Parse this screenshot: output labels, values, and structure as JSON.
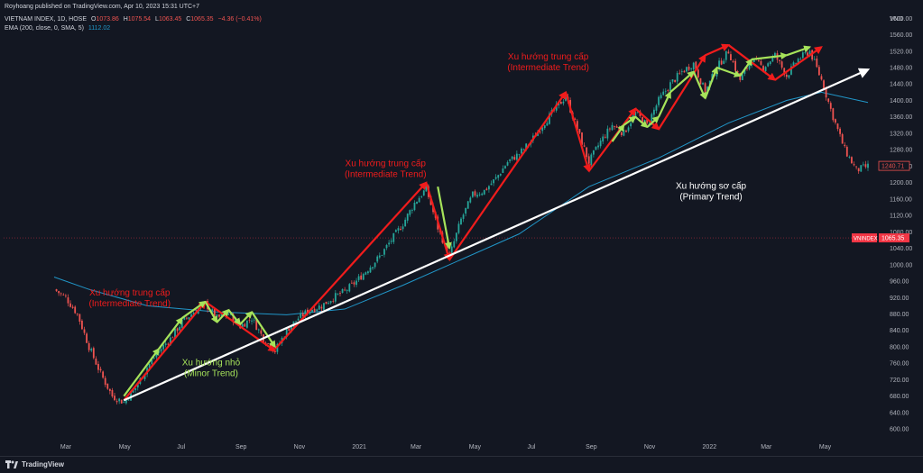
{
  "header": {
    "publisher": "Royhoang published on TradingView.com, Apr 10, 2023 15:31 UTC+7",
    "symbol": "VIETNAM INDEX, 1D, HOSE",
    "o_label": "O",
    "o_value": "1073.86",
    "h_label": "H",
    "h_value": "1075.54",
    "l_label": "L",
    "l_value": "1063.45",
    "c_label": "C",
    "c_value": "1065.35",
    "change": "−4.36 (−0.41%)",
    "ema_label": "EMA (200, close, 0, SMA, 5)",
    "ema_value": "1112.02"
  },
  "footer": {
    "brand": "TradingView",
    "logo_icon": "tradingview-logo-icon"
  },
  "colors": {
    "background": "#131722",
    "up": "#26a69a",
    "down": "#ef5350",
    "ema": "#2196c8",
    "trend_red": "#f01c1c",
    "trend_green": "#a6e35a",
    "primary": "#ffffff"
  },
  "chart_data": {
    "type": "candlestick",
    "currency": "VND",
    "y_ticks": [
      600,
      640,
      680,
      720,
      760,
      800,
      840,
      880,
      920,
      960,
      1000,
      1040,
      1080,
      1120,
      1160,
      1200,
      1240,
      1280,
      1320,
      1360,
      1400,
      1440,
      1480,
      1520,
      1560,
      1600
    ],
    "ylim": [
      574,
      1627
    ],
    "x_ticks": [
      "Mar",
      "May",
      "Jul",
      "Sep",
      "Nov",
      "2021",
      "Mar",
      "May",
      "Jul",
      "Sep",
      "Nov",
      "2022",
      "Mar",
      "May"
    ],
    "price_markers": [
      {
        "label": "VNINDEX",
        "value": "1065.35",
        "price": 1065.35,
        "color": "#f23645"
      },
      {
        "label": "",
        "value": "1240.71",
        "price": 1240.71,
        "color": "#ef5350"
      }
    ],
    "close_path": [
      {
        "t": 0,
        "p": 940
      },
      {
        "t": 1,
        "p": 920
      },
      {
        "t": 2,
        "p": 880
      },
      {
        "t": 3,
        "p": 800
      },
      {
        "t": 4,
        "p": 735
      },
      {
        "t": 5,
        "p": 680
      },
      {
        "t": 6,
        "p": 665
      },
      {
        "t": 7,
        "p": 700
      },
      {
        "t": 8,
        "p": 750
      },
      {
        "t": 9,
        "p": 790
      },
      {
        "t": 10,
        "p": 820
      },
      {
        "t": 11,
        "p": 860
      },
      {
        "t": 12,
        "p": 885
      },
      {
        "t": 13,
        "p": 905
      },
      {
        "t": 14,
        "p": 870
      },
      {
        "t": 15,
        "p": 880
      },
      {
        "t": 16,
        "p": 850
      },
      {
        "t": 17,
        "p": 870
      },
      {
        "t": 18,
        "p": 820
      },
      {
        "t": 19,
        "p": 790
      },
      {
        "t": 20,
        "p": 840
      },
      {
        "t": 21,
        "p": 870
      },
      {
        "t": 22,
        "p": 890
      },
      {
        "t": 23,
        "p": 900
      },
      {
        "t": 24,
        "p": 920
      },
      {
        "t": 25,
        "p": 935
      },
      {
        "t": 26,
        "p": 960
      },
      {
        "t": 27,
        "p": 990
      },
      {
        "t": 28,
        "p": 1020
      },
      {
        "t": 29,
        "p": 1060
      },
      {
        "t": 30,
        "p": 1100
      },
      {
        "t": 31,
        "p": 1150
      },
      {
        "t": 32,
        "p": 1185
      },
      {
        "t": 33,
        "p": 1090
      },
      {
        "t": 34,
        "p": 1020
      },
      {
        "t": 35,
        "p": 1110
      },
      {
        "t": 36,
        "p": 1170
      },
      {
        "t": 37,
        "p": 1180
      },
      {
        "t": 38,
        "p": 1210
      },
      {
        "t": 39,
        "p": 1250
      },
      {
        "t": 40,
        "p": 1270
      },
      {
        "t": 41,
        "p": 1300
      },
      {
        "t": 42,
        "p": 1340
      },
      {
        "t": 43,
        "p": 1375
      },
      {
        "t": 44,
        "p": 1410
      },
      {
        "t": 45,
        "p": 1330
      },
      {
        "t": 46,
        "p": 1250
      },
      {
        "t": 47,
        "p": 1300
      },
      {
        "t": 48,
        "p": 1340
      },
      {
        "t": 49,
        "p": 1320
      },
      {
        "t": 50,
        "p": 1370
      },
      {
        "t": 51,
        "p": 1340
      },
      {
        "t": 52,
        "p": 1400
      },
      {
        "t": 53,
        "p": 1440
      },
      {
        "t": 54,
        "p": 1470
      },
      {
        "t": 55,
        "p": 1490
      },
      {
        "t": 56,
        "p": 1420
      },
      {
        "t": 57,
        "p": 1480
      },
      {
        "t": 58,
        "p": 1520
      },
      {
        "t": 59,
        "p": 1450
      },
      {
        "t": 60,
        "p": 1500
      },
      {
        "t": 61,
        "p": 1480
      },
      {
        "t": 62,
        "p": 1510
      },
      {
        "t": 63,
        "p": 1460
      },
      {
        "t": 64,
        "p": 1500
      },
      {
        "t": 65,
        "p": 1520
      },
      {
        "t": 66,
        "p": 1450
      },
      {
        "t": 67,
        "p": 1360
      },
      {
        "t": 68,
        "p": 1280
      },
      {
        "t": 69,
        "p": 1230
      },
      {
        "t": 70,
        "p": 1240
      }
    ],
    "ema": [
      {
        "t": 0,
        "p": 970
      },
      {
        "t": 3,
        "p": 940
      },
      {
        "t": 8,
        "p": 900
      },
      {
        "t": 14,
        "p": 885
      },
      {
        "t": 20,
        "p": 878
      },
      {
        "t": 25,
        "p": 892
      },
      {
        "t": 30,
        "p": 950
      },
      {
        "t": 34,
        "p": 1000
      },
      {
        "t": 40,
        "p": 1075
      },
      {
        "t": 46,
        "p": 1190
      },
      {
        "t": 52,
        "p": 1260
      },
      {
        "t": 58,
        "p": 1345
      },
      {
        "t": 63,
        "p": 1400
      },
      {
        "t": 66,
        "p": 1420
      },
      {
        "t": 70,
        "p": 1395
      }
    ],
    "annotations": [
      {
        "text": "Xu hướng trung cấp",
        "text2": "(Intermediate Trend)",
        "color": "#f01c1c",
        "t": 6.5,
        "p": 925
      },
      {
        "text": "Xu hướng trung cấp",
        "text2": "(Intermediate Trend)",
        "color": "#f01c1c",
        "t": 28.5,
        "p": 1240
      },
      {
        "text": "Xu hướng trung cấp",
        "text2": "(Intermediate Trend)",
        "color": "#f01c1c",
        "t": 42.5,
        "p": 1500
      },
      {
        "text": "Xu hướng nhỏ",
        "text2": "(Minor Trend)",
        "color": "#a6e35a",
        "t": 13.5,
        "p": 755
      },
      {
        "text": "Xu hướng sơ cấp",
        "text2": "(Primary Trend)",
        "color": "#ffffff",
        "t": 56.5,
        "p": 1185
      }
    ],
    "primary_trend": {
      "from": {
        "t": 6,
        "p": 670
      },
      "to": {
        "t": 70,
        "p": 1475
      }
    },
    "intermediate_trend_lines": [
      [
        {
          "t": 6,
          "p": 670
        },
        {
          "t": 13,
          "p": 910
        },
        {
          "t": 19,
          "p": 790
        }
      ],
      [
        {
          "t": 19,
          "p": 795
        },
        {
          "t": 32,
          "p": 1200
        },
        {
          "t": 34,
          "p": 1012
        },
        {
          "t": 44,
          "p": 1420
        },
        {
          "t": 46,
          "p": 1228
        },
        {
          "t": 50,
          "p": 1380
        },
        {
          "t": 52,
          "p": 1330
        },
        {
          "t": 56,
          "p": 1510
        },
        {
          "t": 58,
          "p": 1535
        },
        {
          "t": 62,
          "p": 1450
        },
        {
          "t": 66,
          "p": 1530
        }
      ]
    ],
    "minor_trend_lines": [
      [
        {
          "t": 6,
          "p": 680
        },
        {
          "t": 9,
          "p": 795
        },
        {
          "t": 11,
          "p": 870
        },
        {
          "t": 13,
          "p": 910
        },
        {
          "t": 14,
          "p": 860
        },
        {
          "t": 15,
          "p": 890
        },
        {
          "t": 16,
          "p": 855
        },
        {
          "t": 17,
          "p": 885
        },
        {
          "t": 19,
          "p": 800
        }
      ],
      [
        {
          "t": 33,
          "p": 1190
        },
        {
          "t": 34,
          "p": 1040
        }
      ],
      [
        {
          "t": 48,
          "p": 1300
        },
        {
          "t": 49,
          "p": 1340
        },
        {
          "t": 50,
          "p": 1360
        },
        {
          "t": 51,
          "p": 1335
        },
        {
          "t": 52,
          "p": 1360
        },
        {
          "t": 53,
          "p": 1420
        },
        {
          "t": 55,
          "p": 1470
        },
        {
          "t": 56,
          "p": 1405
        },
        {
          "t": 57,
          "p": 1480
        },
        {
          "t": 59,
          "p": 1460
        },
        {
          "t": 60,
          "p": 1500
        },
        {
          "t": 63,
          "p": 1510
        },
        {
          "t": 65,
          "p": 1530
        }
      ]
    ]
  }
}
